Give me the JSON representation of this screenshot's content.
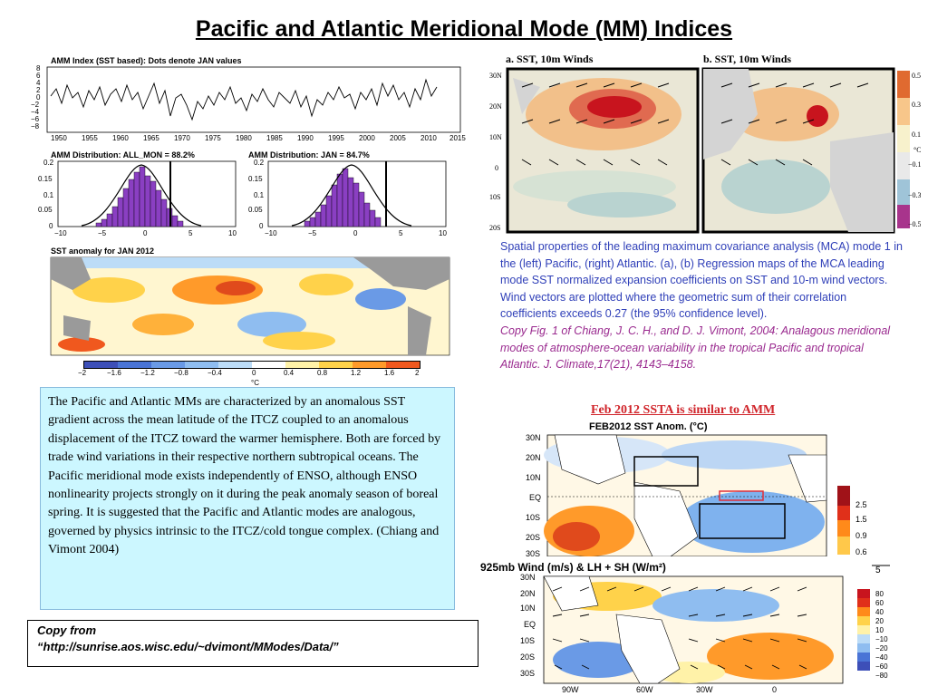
{
  "title": "Pacific and Atlantic Meridional Mode (MM) Indices",
  "amm_panel": {
    "index_title": "AMM Index (SST based):  Dots denote JAN values",
    "y_ticks": [
      "8",
      "6",
      "4",
      "2",
      "0",
      "−2",
      "−4",
      "−6",
      "−8"
    ],
    "x_ticks": [
      "1950",
      "1955",
      "1960",
      "1965",
      "1970",
      "1975",
      "1980",
      "1985",
      "1990",
      "1995",
      "2000",
      "2005",
      "2010",
      "2015"
    ],
    "dist_all_title": "AMM Distribution: ALL_MON = 88.2%",
    "dist_jan_title": "AMM Distribution: JAN = 84.7%",
    "dist_y_ticks": [
      "0.2",
      "0.15",
      "0.1",
      "0.05",
      "0"
    ],
    "dist_x_ticks": [
      "−10",
      "−5",
      "0",
      "5",
      "10"
    ],
    "sst_title": "SST anomaly for JAN 2012",
    "colorbar_ticks": [
      "−2",
      "−1.6",
      "−1.2",
      "−0.8",
      "−0.4",
      "0",
      "0.4",
      "0.8",
      "1.2",
      "1.6",
      "2"
    ],
    "colorbar_unit": "°C",
    "colorbar_colors": [
      "#3d4fb8",
      "#4a74d6",
      "#6a9ae6",
      "#8fbdf0",
      "#bcdcf7",
      "#ffffff",
      "#fff2a8",
      "#ffd24a",
      "#ff9a2a",
      "#f0581e",
      "#c8141e"
    ]
  },
  "mca_panel": {
    "panel_a_title": "a.  SST, 10m Winds",
    "panel_b_title": "b.  SST, 10m Winds",
    "lat_ticks": [
      "30N",
      "20N",
      "10N",
      "0",
      "10S",
      "20S"
    ],
    "colorbar_ticks": [
      "0.5",
      "0.3",
      "0.1",
      "−0.1",
      "−0.3",
      "−0.5"
    ],
    "colorbar_unit": "°C"
  },
  "caption": {
    "text": "Spatial properties of the leading maximum covariance analysis (MCA) mode 1 in the (left) Pacific, (right) Atlantic. (a), (b) Regression maps of the MCA leading mode SST normalized expansion coefficients on SST and 10-m wind vectors. Wind vectors are plotted where the geometric sum of their correlation coefficients exceeds 0.27 (the 95% confidence level).",
    "citation": "Copy Fig. 1 of  Chiang, J. C. H., and D. J. Vimont, 2004:  Analagous meridional modes of atmosphere-ocean variability in the tropical Pacific and tropical Atlantic. J. Climate,17(21), 4143–4158."
  },
  "body_text": "The Pacific and Atlantic MMs are characterized by an anomalous SST gradient across the mean latitude of the ITCZ coupled to an anomalous displacement of the ITCZ toward the warmer hemisphere. Both are forced by trade wind variations in their respective northern subtropical oceans. The Pacific meridional mode exists independently of ENSO, although ENSO nonlinearity projects strongly on it during the peak anomaly season of boreal spring. It is suggested that the Pacific and Atlantic modes are analogous, governed by physics intrinsic to the ITCZ/cold tongue complex. (Chiang and Vimont 2004)",
  "copy_from": {
    "line1": "Copy from",
    "line2": "“http://sunrise.aos.wisc.edu/~dvimont/MModes/Data/”"
  },
  "feb_panel": {
    "heading": "Feb  2012 SSTA is similar to AMM",
    "sst_title": "FEB2012 SST Anom. (°C)",
    "lat_ticks": [
      "30N",
      "20N",
      "10N",
      "EQ",
      "10S",
      "20S",
      "30S"
    ],
    "colorbar_ticks": [
      "2.5",
      "1.5",
      "0.9",
      "0.6"
    ],
    "wind_title": "925mb Wind (m/s) & LH + SH (W/m²)",
    "wind_ref": "5",
    "wind_lat_ticks": [
      "30N",
      "20N",
      "10N",
      "EQ",
      "10S",
      "20S",
      "30S"
    ],
    "wind_lon_ticks": [
      "90W",
      "60W",
      "30W",
      "0"
    ],
    "flux_colorbar_ticks": [
      "80",
      "60",
      "40",
      "20",
      "10",
      "−10",
      "−20",
      "−40",
      "−60",
      "−80"
    ]
  }
}
